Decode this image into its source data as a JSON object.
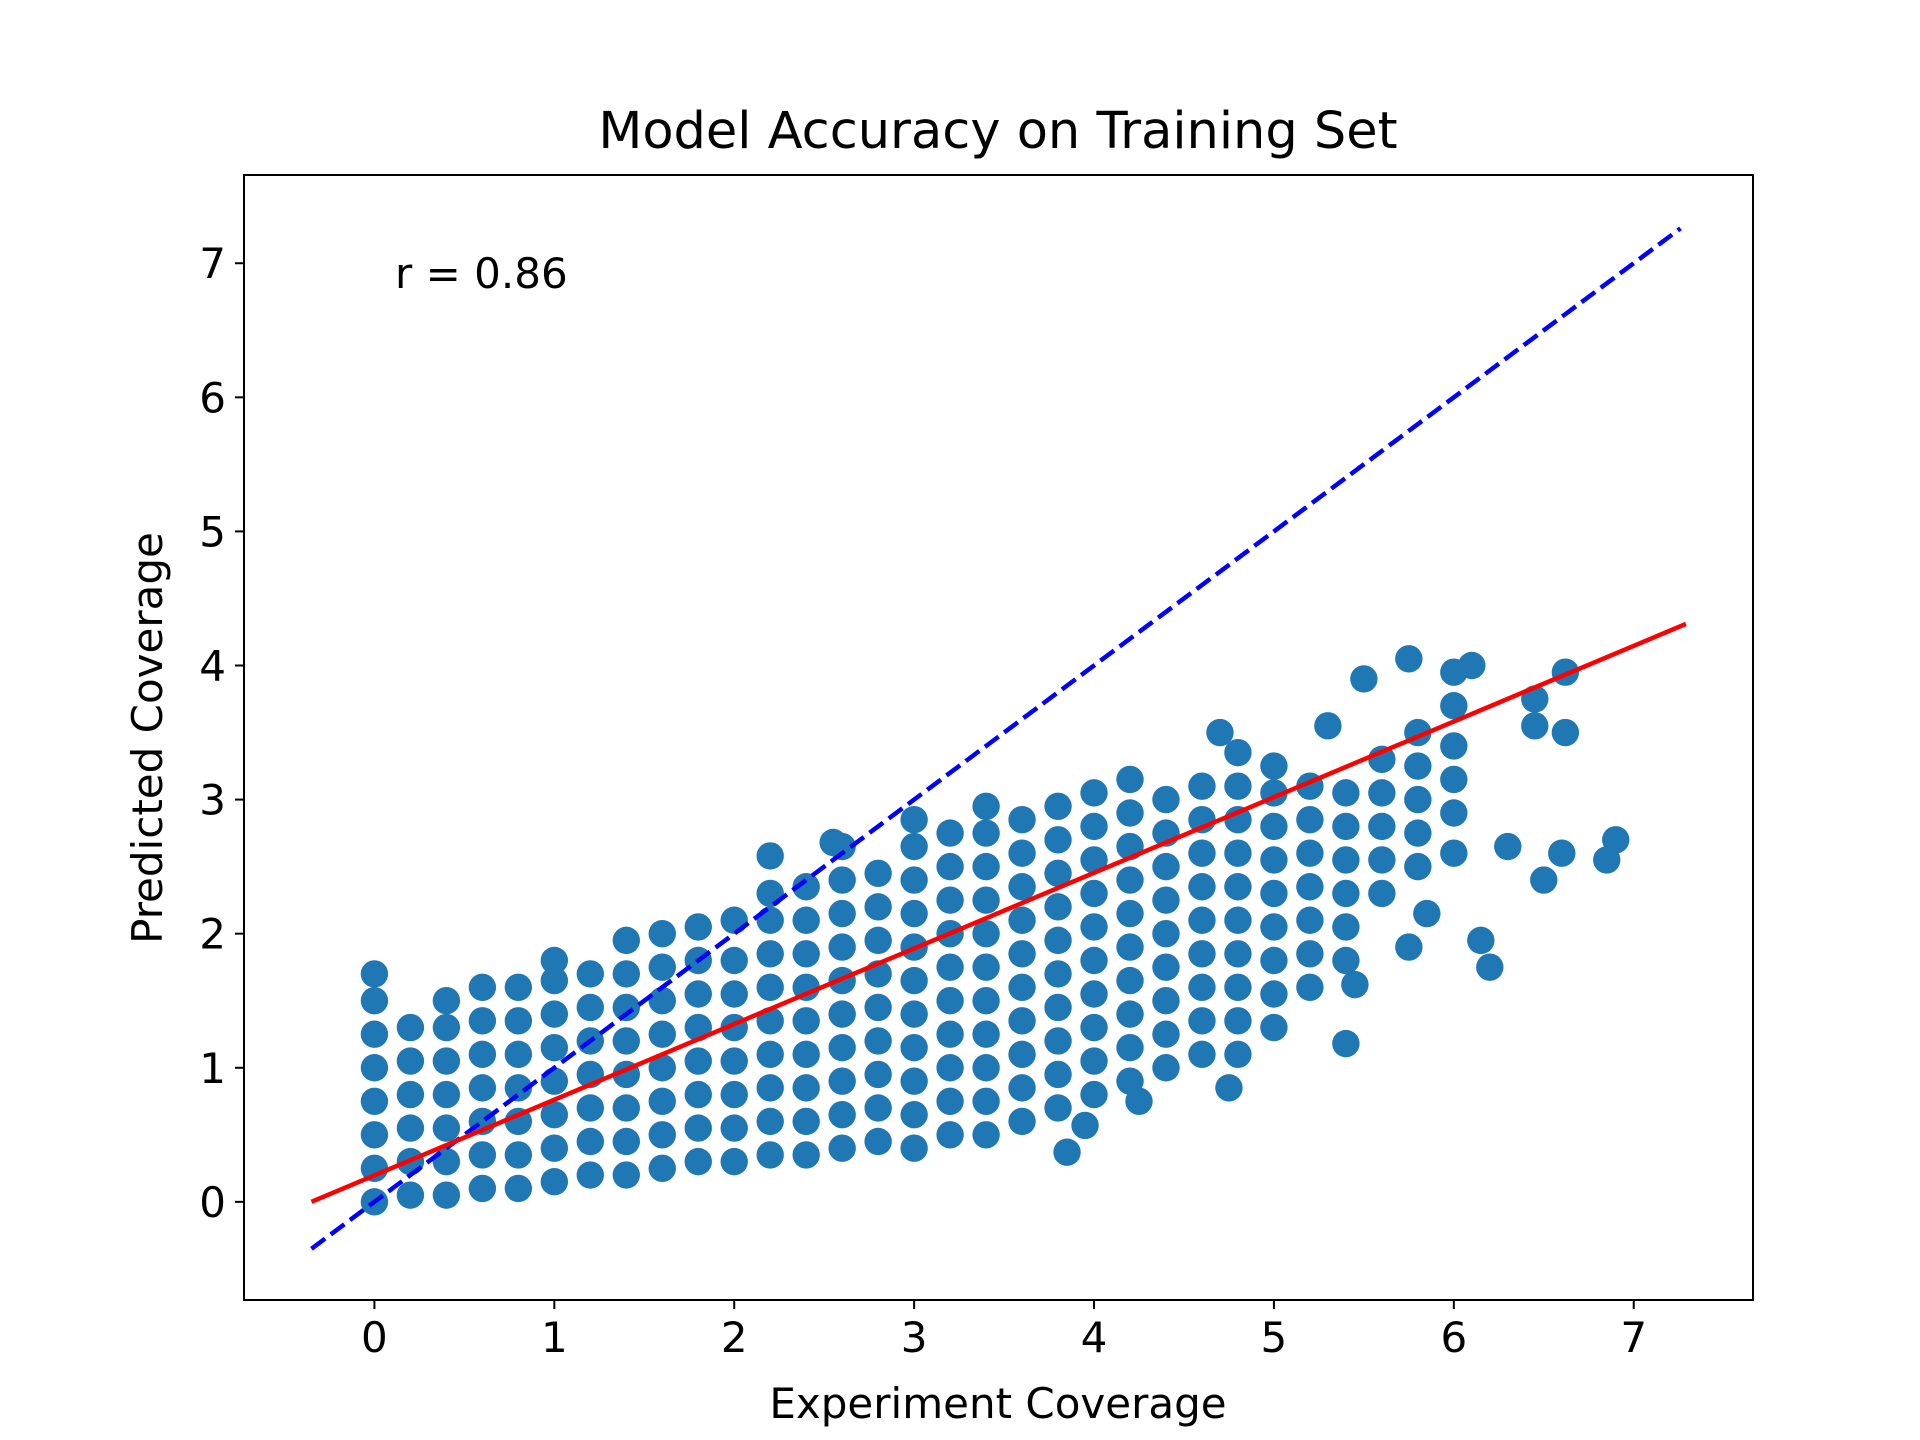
{
  "chart_data": {
    "type": "scatter",
    "title": "Model Accuracy on Training Set",
    "xlabel": "Experiment Coverage",
    "ylabel": "Predicted Coverage",
    "annotation": "r = 0.86",
    "color": "#1f77b4",
    "x": [
      0,
      0,
      0,
      0,
      0,
      0,
      0,
      0,
      0.2,
      0.2,
      0.2,
      0.2,
      0.2,
      0.2,
      0.4,
      0.4,
      0.4,
      0.4,
      0.4,
      0.4,
      0.4,
      0.6,
      0.6,
      0.6,
      0.6,
      0.6,
      0.6,
      0.6,
      0.8,
      0.8,
      0.8,
      0.8,
      0.8,
      0.8,
      0.8,
      1.0,
      1.0,
      1.0,
      1.0,
      1.0,
      1.0,
      1.0,
      1.0,
      1.2,
      1.2,
      1.2,
      1.2,
      1.2,
      1.2,
      1.2,
      1.4,
      1.4,
      1.4,
      1.4,
      1.4,
      1.4,
      1.4,
      1.4,
      1.6,
      1.6,
      1.6,
      1.6,
      1.6,
      1.6,
      1.6,
      1.6,
      1.8,
      1.8,
      1.8,
      1.8,
      1.8,
      1.8,
      1.8,
      1.8,
      2.0,
      2.0,
      2.0,
      2.0,
      2.0,
      2.0,
      2.0,
      2.0,
      2.2,
      2.2,
      2.2,
      2.2,
      2.2,
      2.2,
      2.2,
      2.2,
      2.2,
      2.4,
      2.4,
      2.4,
      2.4,
      2.4,
      2.4,
      2.4,
      2.4,
      2.4,
      2.6,
      2.6,
      2.6,
      2.6,
      2.6,
      2.6,
      2.6,
      2.6,
      2.6,
      2.6,
      2.8,
      2.8,
      2.8,
      2.8,
      2.8,
      2.8,
      2.8,
      2.8,
      2.8,
      3.0,
      3.0,
      3.0,
      3.0,
      3.0,
      3.0,
      3.0,
      3.0,
      3.0,
      3.0,
      3.0,
      3.2,
      3.2,
      3.2,
      3.2,
      3.2,
      3.2,
      3.2,
      3.2,
      3.2,
      3.2,
      3.4,
      3.4,
      3.4,
      3.4,
      3.4,
      3.4,
      3.4,
      3.4,
      3.4,
      3.4,
      3.4,
      3.6,
      3.6,
      3.6,
      3.6,
      3.6,
      3.6,
      3.6,
      3.6,
      3.6,
      3.6,
      3.8,
      3.8,
      3.8,
      3.8,
      3.8,
      3.8,
      3.8,
      3.8,
      3.8,
      3.8,
      4.0,
      4.0,
      4.0,
      4.0,
      4.0,
      4.0,
      4.0,
      4.0,
      4.0,
      4.0,
      4.2,
      4.2,
      4.2,
      4.2,
      4.2,
      4.2,
      4.2,
      4.2,
      4.2,
      4.2,
      4.4,
      4.4,
      4.4,
      4.4,
      4.4,
      4.4,
      4.4,
      4.4,
      4.4,
      4.6,
      4.6,
      4.6,
      4.6,
      4.6,
      4.6,
      4.6,
      4.6,
      4.6,
      4.8,
      4.8,
      4.8,
      4.8,
      4.8,
      4.8,
      4.8,
      4.8,
      4.8,
      4.8,
      5.0,
      5.0,
      5.0,
      5.0,
      5.0,
      5.0,
      5.0,
      5.0,
      5.0,
      5.2,
      5.2,
      5.2,
      5.2,
      5.2,
      5.2,
      5.2,
      5.4,
      5.4,
      5.4,
      5.4,
      5.4,
      5.4,
      5.6,
      5.6,
      5.6,
      5.6,
      5.6,
      5.8,
      5.8,
      5.8,
      5.8,
      5.8,
      6.0,
      6.0,
      6.0,
      6.0,
      6.0,
      3.85,
      3.95,
      4.25,
      4.75,
      5.45,
      5.4,
      6.2,
      6.15,
      6.5,
      6.6,
      6.85,
      6.9,
      6.3,
      5.75,
      6.0,
      6.45,
      6.62,
      6.45,
      6.62,
      5.5,
      5.75,
      6.1,
      4.7,
      5.3,
      5.85,
      2.2,
      2.55
    ],
    "values": [
      0,
      0.25,
      0.5,
      0.75,
      1.0,
      1.25,
      1.5,
      1.7,
      0.05,
      0.3,
      0.55,
      0.8,
      1.05,
      1.3,
      0.05,
      0.3,
      0.55,
      0.8,
      1.05,
      1.3,
      1.5,
      0.1,
      0.35,
      0.6,
      0.85,
      1.1,
      1.35,
      1.6,
      0.1,
      0.35,
      0.6,
      0.85,
      1.1,
      1.35,
      1.6,
      0.15,
      0.4,
      0.65,
      0.9,
      1.15,
      1.4,
      1.65,
      1.8,
      0.2,
      0.45,
      0.7,
      0.95,
      1.2,
      1.45,
      1.7,
      0.2,
      0.45,
      0.7,
      0.95,
      1.2,
      1.45,
      1.7,
      1.95,
      0.25,
      0.5,
      0.75,
      1.0,
      1.25,
      1.5,
      1.75,
      2.0,
      0.3,
      0.55,
      0.8,
      1.05,
      1.3,
      1.55,
      1.8,
      2.05,
      0.3,
      0.55,
      0.8,
      1.05,
      1.3,
      1.55,
      1.8,
      2.1,
      0.35,
      0.6,
      0.85,
      1.1,
      1.35,
      1.6,
      1.85,
      2.1,
      2.3,
      0.35,
      0.6,
      0.85,
      1.1,
      1.35,
      1.6,
      1.85,
      2.1,
      2.35,
      0.4,
      0.65,
      0.9,
      1.15,
      1.4,
      1.65,
      1.9,
      2.15,
      2.4,
      2.65,
      0.45,
      0.7,
      0.95,
      1.2,
      1.45,
      1.7,
      1.95,
      2.2,
      2.45,
      0.4,
      0.65,
      0.9,
      1.15,
      1.4,
      1.65,
      1.9,
      2.15,
      2.4,
      2.65,
      2.85,
      0.5,
      0.75,
      1.0,
      1.25,
      1.5,
      1.75,
      2.0,
      2.25,
      2.5,
      2.75,
      0.5,
      0.75,
      1.0,
      1.25,
      1.5,
      1.75,
      2.0,
      2.25,
      2.5,
      2.75,
      2.95,
      0.6,
      0.85,
      1.1,
      1.35,
      1.6,
      1.85,
      2.1,
      2.35,
      2.6,
      2.85,
      0.7,
      0.95,
      1.2,
      1.45,
      1.7,
      1.95,
      2.2,
      2.45,
      2.7,
      2.95,
      0.8,
      1.05,
      1.3,
      1.55,
      1.8,
      2.05,
      2.3,
      2.55,
      2.8,
      3.05,
      0.9,
      1.15,
      1.4,
      1.65,
      1.9,
      2.15,
      2.4,
      2.65,
      2.9,
      3.15,
      1.0,
      1.25,
      1.5,
      1.75,
      2.0,
      2.25,
      2.5,
      2.75,
      3.0,
      1.1,
      1.35,
      1.6,
      1.85,
      2.1,
      2.35,
      2.6,
      2.85,
      3.1,
      1.1,
      1.35,
      1.6,
      1.85,
      2.1,
      2.35,
      2.6,
      2.85,
      3.1,
      3.35,
      1.3,
      1.55,
      1.8,
      2.05,
      2.3,
      2.55,
      2.8,
      3.05,
      3.25,
      1.6,
      1.85,
      2.1,
      2.35,
      2.6,
      2.85,
      3.1,
      1.8,
      2.05,
      2.3,
      2.55,
      2.8,
      3.05,
      2.3,
      2.55,
      2.8,
      3.05,
      3.3,
      2.5,
      2.75,
      3.0,
      3.25,
      3.5,
      2.9,
      3.15,
      3.4,
      3.7,
      3.95,
      0.37,
      0.57,
      0.75,
      0.85,
      1.62,
      1.18,
      1.75,
      1.95,
      2.4,
      2.6,
      2.55,
      2.7,
      2.65,
      1.9,
      2.6,
      3.55,
      3.95,
      3.75,
      3.5,
      3.9,
      4.05,
      4.0,
      3.5,
      3.55,
      2.15,
      2.58,
      2.68
    ],
    "lines": [
      {
        "color": "#0000ff",
        "style": "dashed",
        "x": [
          -0.35,
          7.26
        ],
        "values": [
          -0.35,
          7.26
        ]
      },
      {
        "color": "#ff0000",
        "style": "solid",
        "x": [
          -0.35,
          7.29
        ],
        "values": [
          0.0,
          4.31
        ]
      }
    ],
    "xlim": [
      -0.725,
      7.663
    ],
    "ylim": [
      -0.732,
      7.658
    ],
    "xticks": [
      0,
      1,
      2,
      3,
      4,
      5,
      6,
      7
    ],
    "yticks": [
      0,
      1,
      2,
      3,
      4,
      5,
      6,
      7
    ]
  }
}
